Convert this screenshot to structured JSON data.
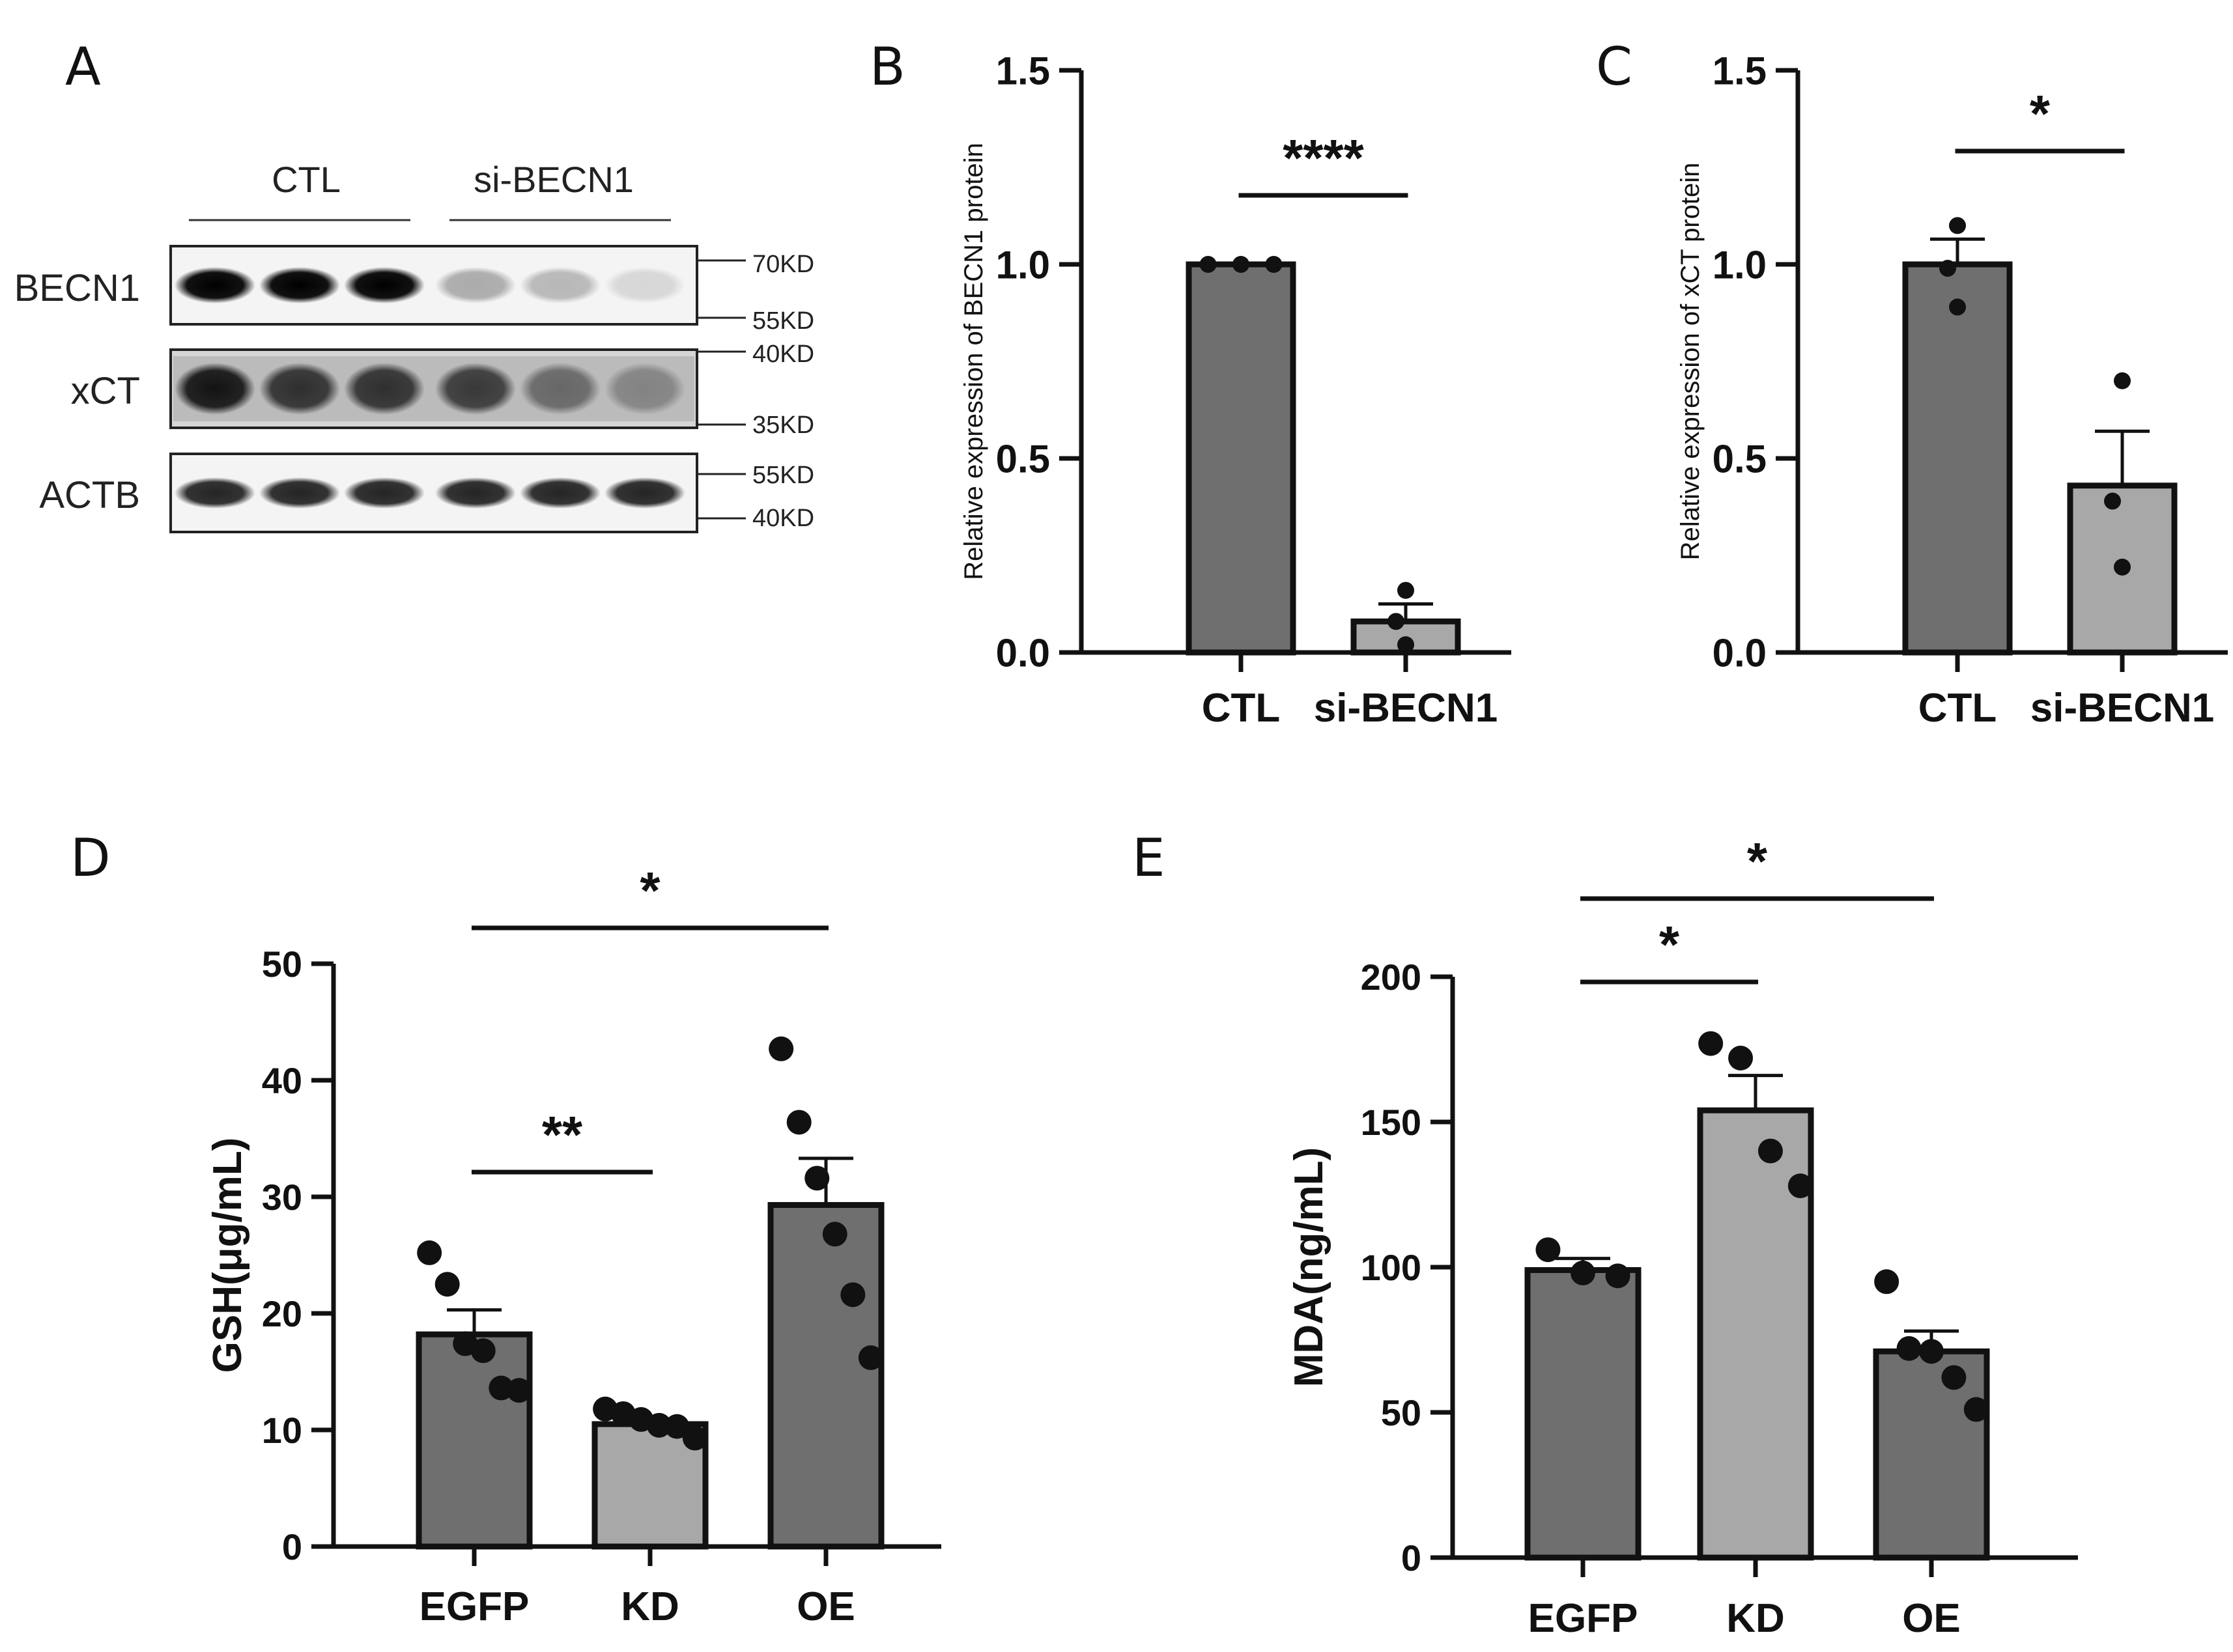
{
  "figure": {
    "panels": [
      "A",
      "B",
      "C",
      "D",
      "E"
    ]
  },
  "western_blot": {
    "groups": [
      "CTL",
      "si-BECN1"
    ],
    "lanes_per_group": 3,
    "rows": [
      {
        "protein": "BECN1",
        "markers": [
          "70KD",
          "55KD"
        ],
        "band_intensity": [
          1.0,
          1.0,
          1.0,
          0.3,
          0.25,
          0.12
        ]
      },
      {
        "protein": "xCT",
        "markers": [
          "40KD",
          "35KD"
        ],
        "band_intensity": [
          0.9,
          0.75,
          0.75,
          0.7,
          0.45,
          0.3
        ]
      },
      {
        "protein": "ACTB",
        "markers": [
          "55KD",
          "40KD"
        ],
        "band_intensity": [
          0.85,
          0.85,
          0.85,
          0.85,
          0.85,
          0.85
        ]
      }
    ]
  },
  "chart_data": [
    {
      "panel": "B",
      "type": "bar",
      "categories": [
        "CTL",
        "si-BECN1"
      ],
      "values": [
        1.0,
        0.08
      ],
      "sem": [
        0.0,
        0.045
      ],
      "points": [
        [
          1.0,
          1.0,
          1.0
        ],
        [
          0.16,
          0.08,
          0.02
        ]
      ],
      "bar_colors": [
        "#6f6f6f",
        "#a8a8a8"
      ],
      "ylabel": "Relative expression of BECN1 protein",
      "ylim": [
        0,
        1.5
      ],
      "yticks": [
        "0.0",
        "0.5",
        "1.0",
        "1.5"
      ],
      "significance": [
        {
          "pair": [
            0,
            1
          ],
          "label": "****"
        }
      ]
    },
    {
      "panel": "C",
      "type": "bar",
      "categories": [
        "CTL",
        "si-BECN1"
      ],
      "values": [
        1.0,
        0.43
      ],
      "sem": [
        0.065,
        0.14
      ],
      "points": [
        [
          1.1,
          0.99,
          0.89
        ],
        [
          0.7,
          0.39,
          0.22
        ]
      ],
      "bar_colors": [
        "#6f6f6f",
        "#a8a8a8"
      ],
      "ylabel": "Relative expression of xCT protein",
      "ylim": [
        0,
        1.5
      ],
      "yticks": [
        "0.0",
        "0.5",
        "1.0",
        "1.5"
      ],
      "significance": [
        {
          "pair": [
            0,
            1
          ],
          "label": "*"
        }
      ]
    },
    {
      "panel": "D",
      "type": "bar",
      "categories": [
        "EGFP",
        "KD",
        "OE"
      ],
      "values": [
        18.2,
        10.5,
        29.3
      ],
      "sem": [
        2.1,
        0.3,
        4.0
      ],
      "points": [
        [
          25.2,
          22.5,
          17.4,
          16.8,
          13.6,
          13.4
        ],
        [
          11.8,
          11.4,
          10.9,
          10.4,
          10.3,
          9.3
        ],
        [
          42.7,
          36.4,
          31.6,
          26.8,
          21.6,
          16.2
        ]
      ],
      "bar_colors": [
        "#6f6f6f",
        "#a8a8a8",
        "#6f6f6f"
      ],
      "ylabel": "GSH(μg/mL)",
      "ylim": [
        0,
        50
      ],
      "yticks": [
        "0",
        "10",
        "20",
        "30",
        "40",
        "50"
      ],
      "significance": [
        {
          "pair": [
            0,
            1
          ],
          "label": "**"
        },
        {
          "pair": [
            0,
            2
          ],
          "label": "*"
        }
      ]
    },
    {
      "panel": "E",
      "type": "bar",
      "categories": [
        "EGFP",
        "KD",
        "OE"
      ],
      "values": [
        99,
        154,
        71
      ],
      "sem": [
        4,
        12,
        7
      ],
      "points": [
        [
          106,
          98,
          97
        ],
        [
          177,
          172,
          140,
          128
        ],
        [
          95,
          72,
          71,
          62,
          51
        ]
      ],
      "bar_colors": [
        "#6f6f6f",
        "#a8a8a8",
        "#6f6f6f"
      ],
      "ylabel": "MDA(ng/mL)",
      "ylim": [
        0,
        200
      ],
      "yticks": [
        "0",
        "50",
        "100",
        "150",
        "200"
      ],
      "significance": [
        {
          "pair": [
            0,
            1
          ],
          "label": "*"
        },
        {
          "pair": [
            0,
            2
          ],
          "label": "*"
        }
      ]
    }
  ]
}
